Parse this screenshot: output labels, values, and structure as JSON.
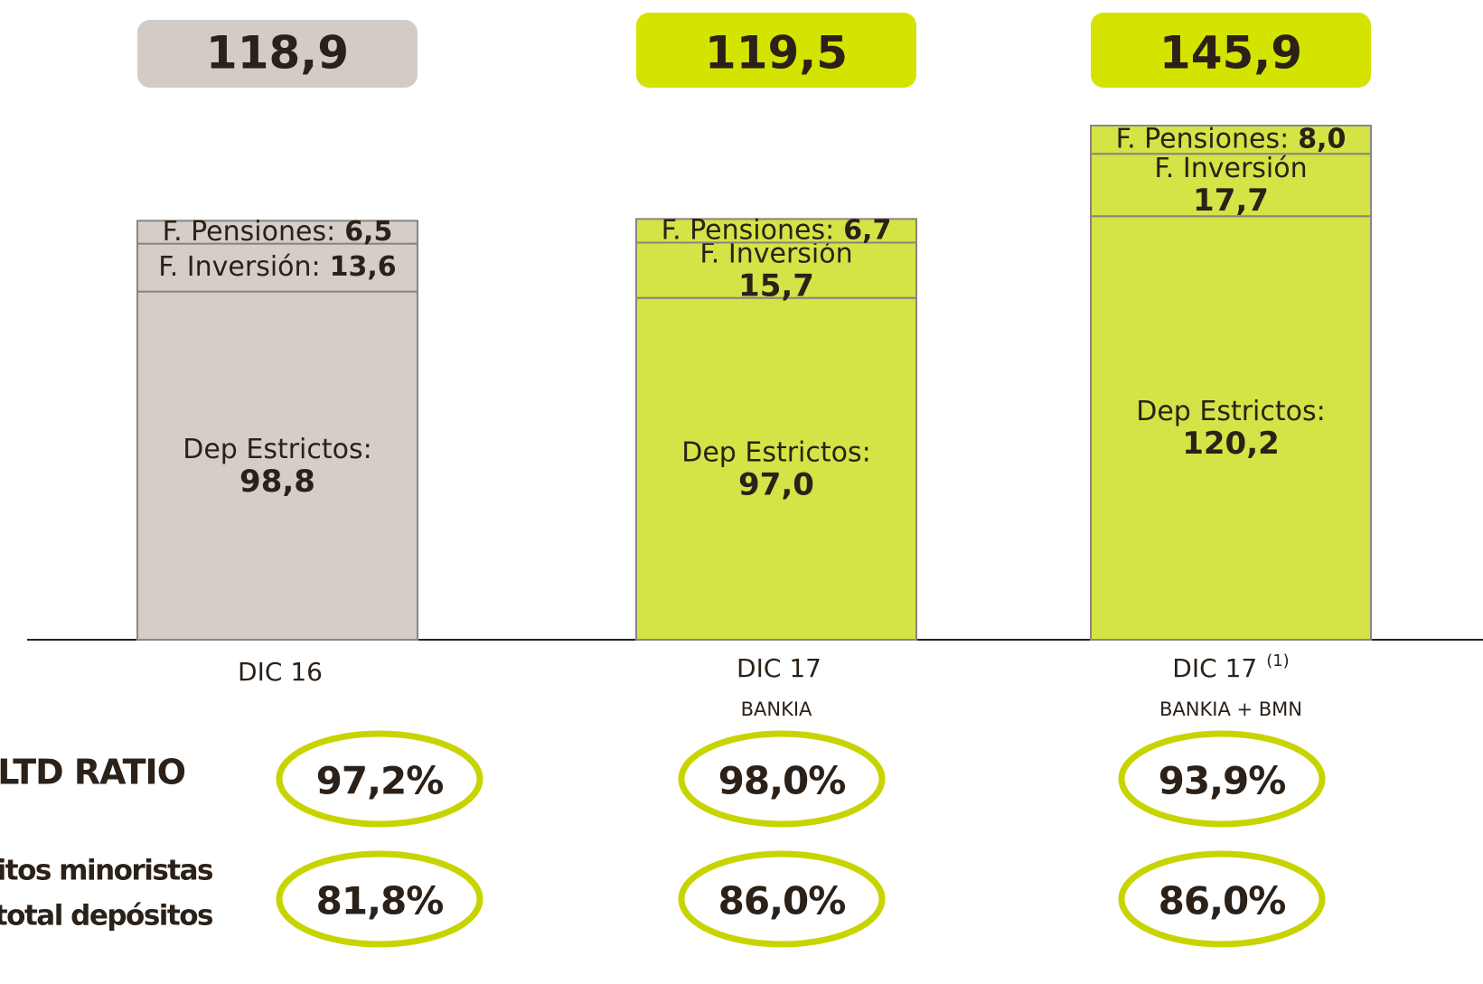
{
  "chart_data": {
    "type": "stacked_bar",
    "categories": [
      "DIC 16",
      "DIC 17",
      "DIC 17"
    ],
    "footnote_marks": [
      null,
      null,
      "(1)"
    ],
    "subcategories": [
      null,
      "BANKIA",
      "BANKIA + BMN"
    ],
    "bar_colors": [
      "#d5cdc7",
      "#d4e346",
      "#d4e346"
    ],
    "total_colors": [
      "#d3cbc5",
      "#d4e300",
      "#d4e300"
    ],
    "totals": [
      118.9,
      119.5,
      145.9
    ],
    "total_labels": [
      "118,9",
      "119,5",
      "145,9"
    ],
    "series": [
      {
        "labels": [
          "Dep Estrictos:",
          "Dep Estrictos:",
          "Dep Estrictos:"
        ],
        "values": [
          98.8,
          97.0,
          120.2
        ],
        "value_labels": [
          "98,8",
          "97,0",
          "120,2"
        ]
      },
      {
        "labels": [
          "F. Inversión:",
          "F. Inversión",
          "F. Inversión"
        ],
        "values": [
          13.6,
          15.7,
          17.7
        ],
        "value_labels": [
          "13,6",
          "15,7",
          "17,7"
        ]
      },
      {
        "labels": [
          "F. Pensiones:",
          "F. Pensiones:",
          "F. Pensiones:"
        ],
        "values": [
          6.5,
          6.7,
          8.0
        ],
        "value_labels": [
          "6,5",
          "6,7",
          "8,0"
        ]
      }
    ],
    "ratios": [
      {
        "label": [
          "LTD RATIO"
        ],
        "values": [
          97.2,
          98.0,
          93.9
        ],
        "value_labels": [
          "97,2%",
          "98,0%",
          "93,9%"
        ]
      },
      {
        "label": [
          "Depósitos minoristas",
          "/ total depósitos"
        ],
        "values": [
          81.8,
          86.0,
          86.0
        ],
        "value_labels": [
          "81,8%",
          "86,0%",
          "86,0%"
        ]
      }
    ]
  }
}
